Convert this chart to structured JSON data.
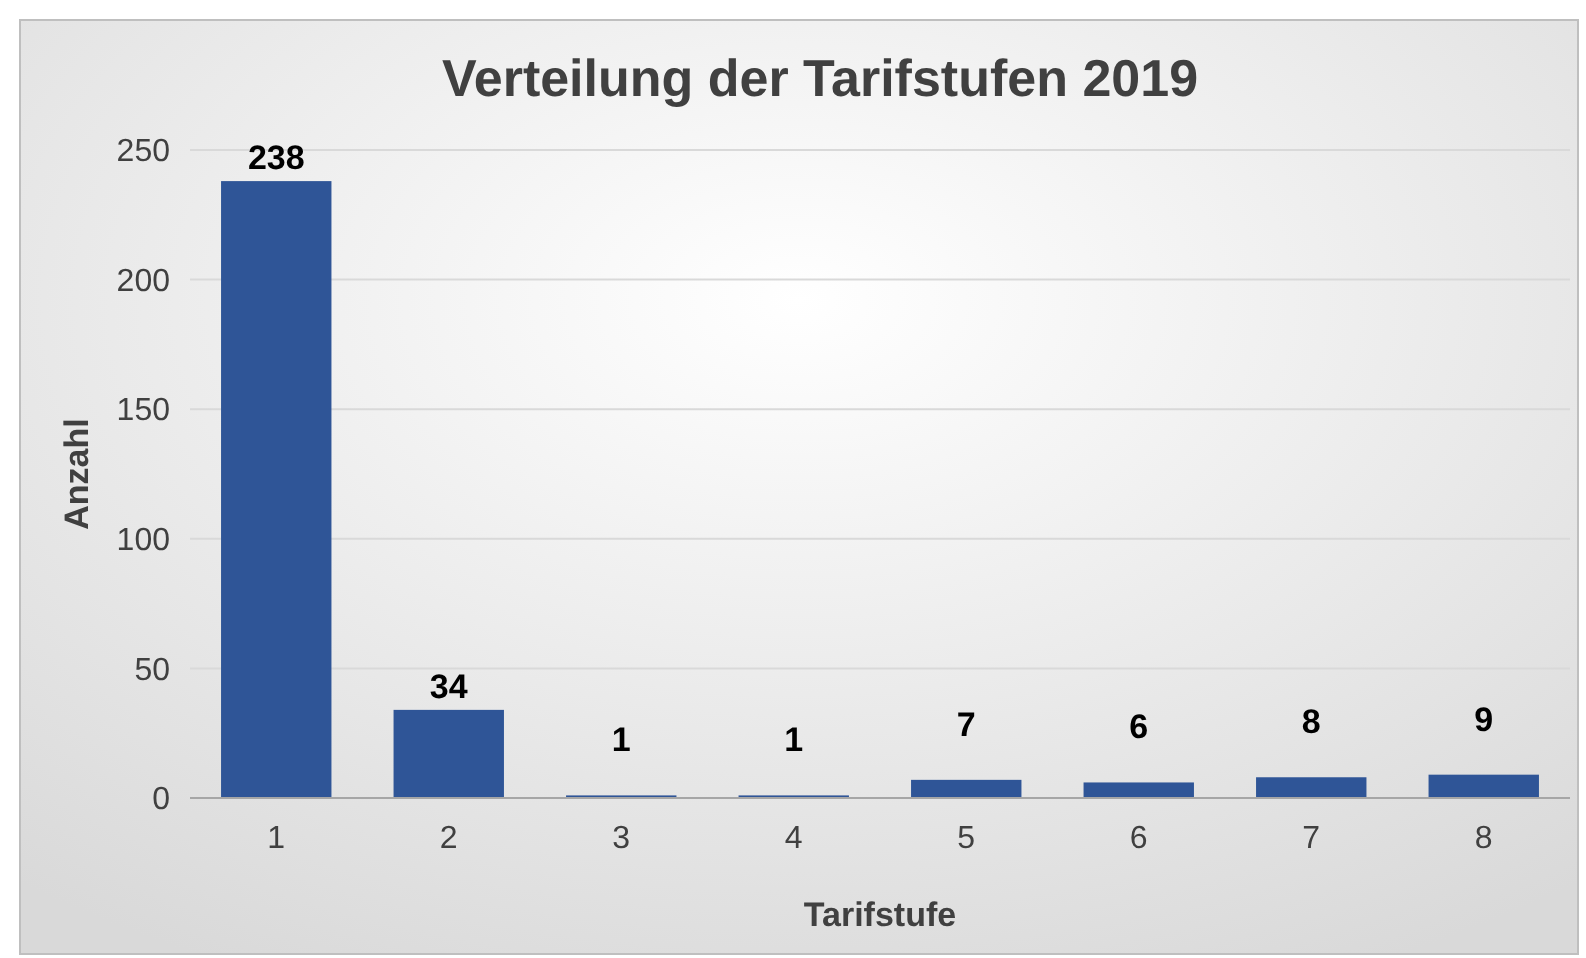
{
  "chart_data": {
    "type": "bar",
    "title": "Verteilung der Tarifstufen 2019",
    "xlabel": "Tarifstufe",
    "ylabel": "Anzahl",
    "categories": [
      "1",
      "2",
      "3",
      "4",
      "5",
      "6",
      "7",
      "8"
    ],
    "values": [
      238,
      34,
      1,
      1,
      7,
      6,
      8,
      9
    ],
    "color": "#2f5597",
    "ylim": [
      0,
      250
    ],
    "yticks": [
      0,
      50,
      100,
      150,
      200,
      250
    ],
    "grid": "y",
    "data_labels": true
  }
}
